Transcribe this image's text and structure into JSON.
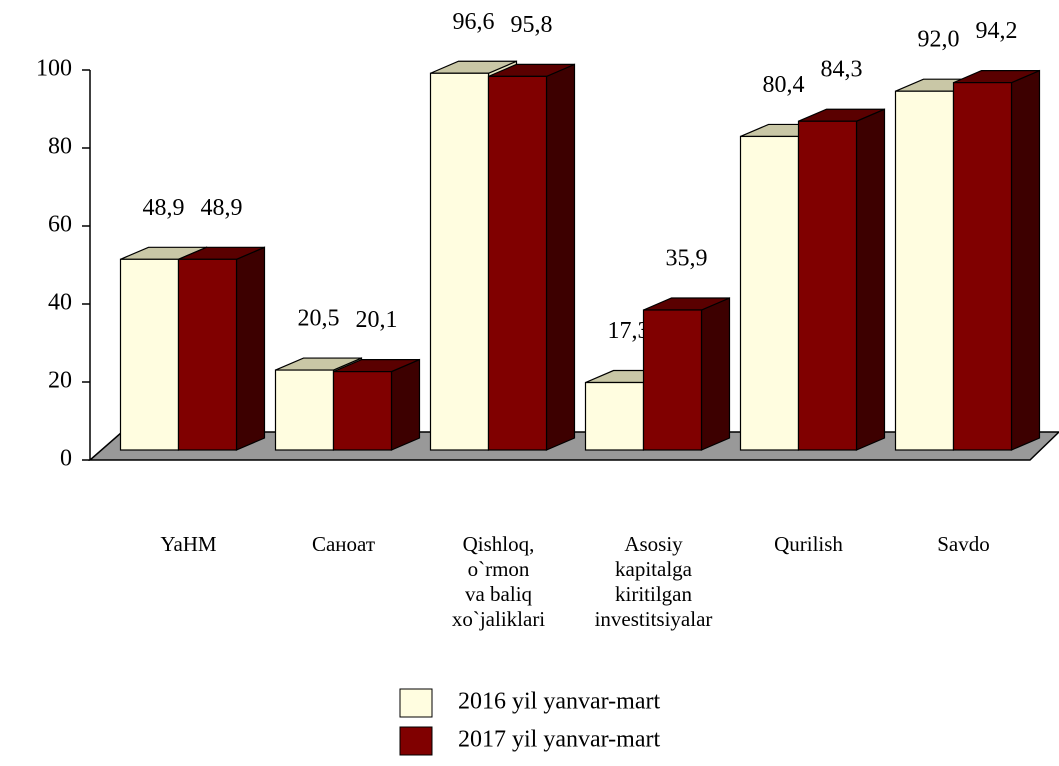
{
  "chart_data": {
    "type": "bar3d",
    "categories": [
      "YaHM",
      "Саноат",
      "Qishloq,\no`rmon\nva baliq\nxo`jaliklari",
      "Asosiy\nkapitalga\nkiritilgan\ninvestitsiyalar",
      "Qurilish",
      "Savdo"
    ],
    "series": [
      {
        "name": "2016 yil yanvar-mart",
        "color": "#fffde0",
        "values": [
          48.9,
          20.5,
          96.6,
          17.3,
          80.4,
          92.0
        ],
        "value_labels": [
          "48,9",
          "20,5",
          "96,6",
          "17,3",
          "80,4",
          "92,0"
        ]
      },
      {
        "name": "2017 yil yanvar-mart",
        "color": "#800000",
        "values": [
          48.9,
          20.1,
          95.8,
          35.9,
          84.3,
          94.2
        ],
        "value_labels": [
          "48,9",
          "20,1",
          "95,8",
          "35,9",
          "84,3",
          "94,2"
        ]
      }
    ],
    "ylim": [
      0,
      100
    ],
    "yticks": [
      0,
      20,
      40,
      60,
      80,
      100
    ]
  }
}
